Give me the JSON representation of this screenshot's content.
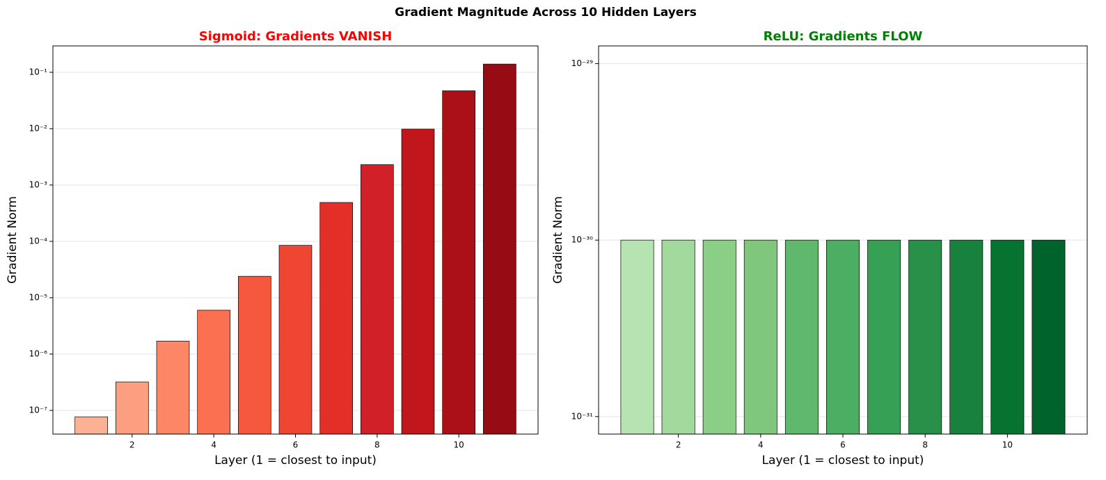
{
  "title": "Gradient Magnitude Across 10 Hidden Layers",
  "chart_data": [
    {
      "type": "bar",
      "title": "Sigmoid: Gradients VANISH",
      "title_color": "#ff0000",
      "x_label": "Layer (1 = closest to input)",
      "y_label": "Gradient Norm",
      "x": [
        1,
        2,
        3,
        4,
        5,
        6,
        7,
        8,
        9,
        10,
        11
      ],
      "values": [
        7.7e-08,
        3.2e-07,
        1.7e-06,
        6e-06,
        2.4e-05,
        8.5e-05,
        0.00049,
        0.0023,
        0.0098,
        0.047,
        0.14
      ],
      "colors": [
        "#fcb194",
        "#fc9e80",
        "#fc8666",
        "#fb7050",
        "#f6583e",
        "#ef4533",
        "#e32f27",
        "#d22028",
        "#c1161b",
        "#ab1016",
        "#960b14"
      ],
      "xlim": [
        0.06,
        11.94
      ],
      "xticks": [
        2,
        4,
        6,
        8,
        10
      ],
      "ylim": [
        3.8e-08,
        0.294
      ],
      "log_y": true,
      "grid": true,
      "yticks": [
        {
          "value": 1e-07,
          "label": "10⁻⁷"
        },
        {
          "value": 1e-06,
          "label": "10⁻⁶"
        },
        {
          "value": 1e-05,
          "label": "10⁻⁵"
        },
        {
          "value": 0.0001,
          "label": "10⁻⁴"
        },
        {
          "value": 0.001,
          "label": "10⁻³"
        },
        {
          "value": 0.01,
          "label": "10⁻²"
        },
        {
          "value": 0.1,
          "label": "10⁻¹"
        }
      ]
    },
    {
      "type": "bar",
      "title": "ReLU: Gradients FLOW",
      "title_color": "#008000",
      "x_label": "Layer (1 = closest to input)",
      "y_label": "Gradient Norm",
      "x": [
        1,
        2,
        3,
        4,
        5,
        6,
        7,
        8,
        9,
        10,
        11
      ],
      "values": [
        1e-30,
        1e-30,
        1e-30,
        1e-30,
        1e-30,
        1e-30,
        1e-30,
        1e-30,
        1e-30,
        1e-30,
        1e-30
      ],
      "colors": [
        "#b7e2b1",
        "#a2d99c",
        "#8bce86",
        "#7ec77c",
        "#5fb86b",
        "#4bae62",
        "#36a055",
        "#289049",
        "#17813d",
        "#077331",
        "#00632b"
      ],
      "xlim": [
        0.06,
        11.94
      ],
      "xticks": [
        2,
        4,
        6,
        8,
        10
      ],
      "ylim": [
        7.96e-32,
        1.26e-29
      ],
      "log_y": true,
      "grid": true,
      "yticks": [
        {
          "value": 1e-31,
          "label": "10⁻³¹"
        },
        {
          "value": 1e-30,
          "label": "10⁻³⁰"
        },
        {
          "value": 1e-29,
          "label": "10⁻²⁹"
        }
      ]
    }
  ]
}
